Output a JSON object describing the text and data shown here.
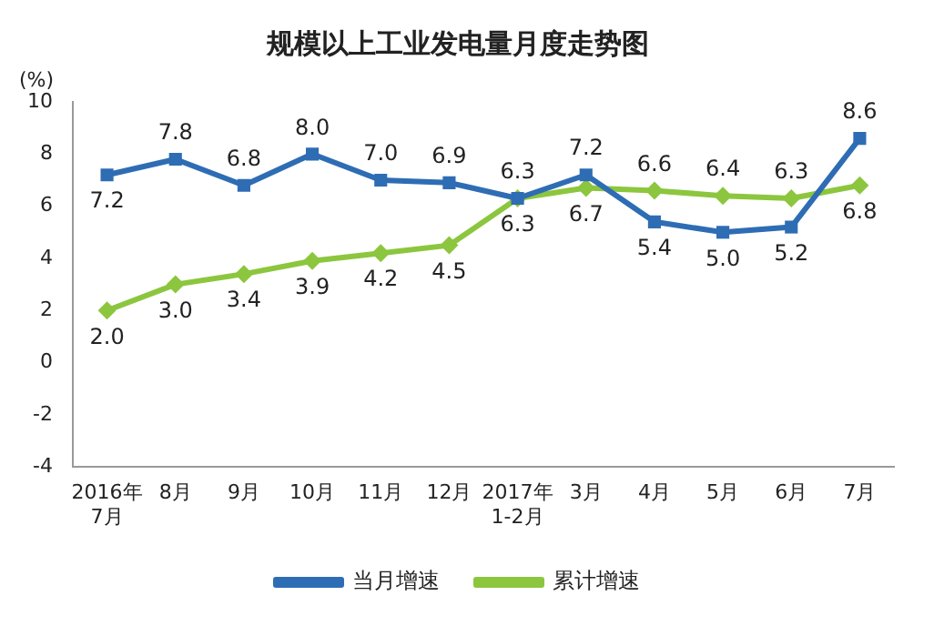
{
  "chart_data": {
    "type": "line",
    "title": "规模以上工业发电量月度走势图",
    "ylabel": "(%)",
    "categories": [
      "2016年\n7月",
      "8月",
      "9月",
      "10月",
      "11月",
      "12月",
      "2017年\n1-2月",
      "3月",
      "4月",
      "5月",
      "6月",
      "7月"
    ],
    "series": [
      {
        "name": "当月增速",
        "color": "#2e6db4",
        "marker": "square",
        "values": [
          7.2,
          7.8,
          6.8,
          8.0,
          7.0,
          6.9,
          6.3,
          7.2,
          5.4,
          5.0,
          5.2,
          8.6
        ],
        "value_labels": [
          "7.2",
          "7.8",
          "6.8",
          "8.0",
          "7.0",
          "6.9",
          "6.3",
          "7.2",
          "5.4",
          "5.0",
          "5.2",
          "8.6"
        ]
      },
      {
        "name": "累计增速",
        "color": "#8cc63e",
        "marker": "diamond",
        "values": [
          2.0,
          3.0,
          3.4,
          3.9,
          4.2,
          4.5,
          6.3,
          6.7,
          6.6,
          6.4,
          6.3,
          6.8
        ],
        "value_labels": [
          "2.0",
          "3.0",
          "3.4",
          "3.9",
          "4.2",
          "4.5",
          "6.3",
          "6.7",
          "6.6",
          "6.4",
          "6.3",
          "6.8"
        ]
      }
    ],
    "ylim": [
      -4,
      10
    ],
    "yticks": [
      -4,
      -2,
      0,
      2,
      4,
      6,
      8,
      10
    ],
    "grid": false,
    "legend": "bottom",
    "line_style": "solid"
  }
}
